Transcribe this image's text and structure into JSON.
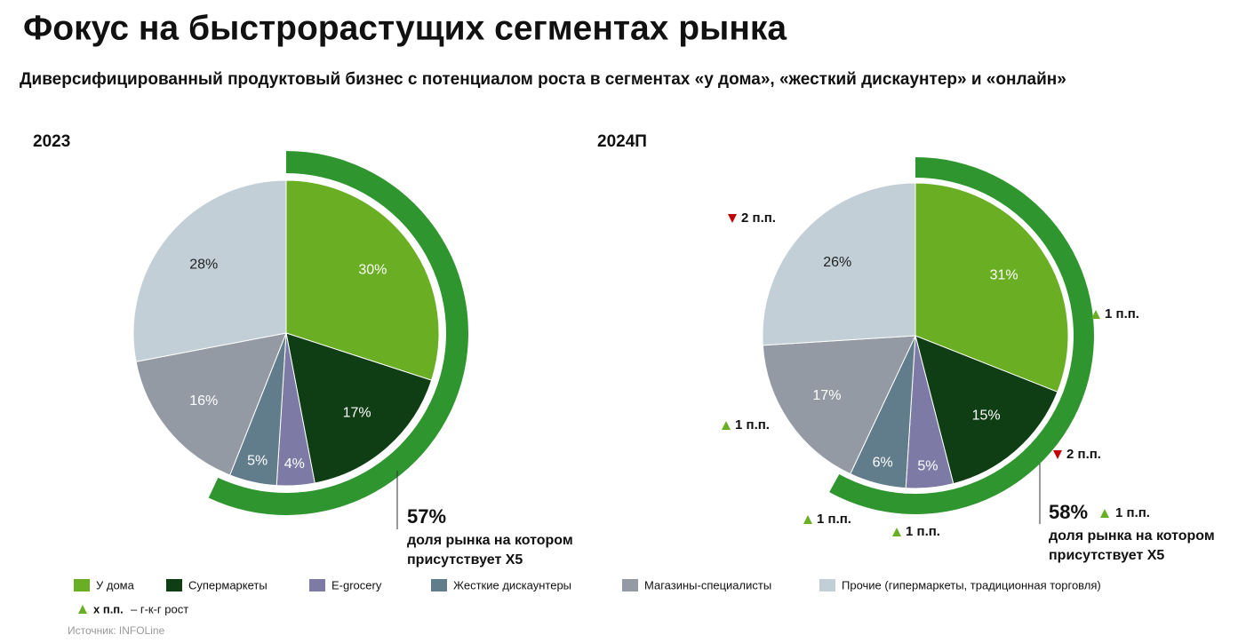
{
  "title": "Фокус на быстрорастущих сегментах рынка",
  "subtitle": "Диверсифицированный продуктовый бизнес с потенциалом роста в сегментах «у дома», «жесткий дискаунтер» и «онлайн»",
  "legend": {
    "categories": [
      "У дома",
      "Супермаркеты",
      "E-grocery",
      "Жесткие дискаунтеры",
      "Магазины-специалисты",
      "Прочие (гипермаркеты, традиционная торговля)"
    ],
    "colors": [
      "#6aaf23",
      "#0f3d14",
      "#7d7ba6",
      "#617c8b",
      "#949aa4",
      "#c3cfd7"
    ]
  },
  "growth_note": {
    "marker": "x п.п.",
    "text": "– г-к-г рост"
  },
  "source": "Источник: INFOLine",
  "chart_data": [
    {
      "type": "pie",
      "title": "2023",
      "values": [
        30,
        17,
        4,
        5,
        16,
        28
      ],
      "value_labels": [
        "30%",
        "17%",
        "4%",
        "5%",
        "16%",
        "28%"
      ],
      "share": {
        "value": 57,
        "label": "57%",
        "text_lines": [
          "доля рынка на котором",
          "присутствует X5"
        ]
      }
    },
    {
      "type": "pie",
      "title": "2024П",
      "values": [
        31,
        15,
        5,
        6,
        17,
        26
      ],
      "value_labels": [
        "31%",
        "15%",
        "5%",
        "6%",
        "17%",
        "26%"
      ],
      "changes": [
        {
          "value": 1,
          "label": "1 п.п."
        },
        {
          "value": -2,
          "label": "2 п.п."
        },
        {
          "value": 1,
          "label": "1 п.п."
        },
        {
          "value": 1,
          "label": "1 п.п."
        },
        {
          "value": 1,
          "label": "1 п.п."
        },
        {
          "value": -2,
          "label": "2 п.п."
        }
      ],
      "share": {
        "value": 58,
        "label": "58%",
        "change": {
          "value": 1,
          "label": "1 п.п."
        },
        "text_lines": [
          "доля рынка на котором",
          "присутствует X5"
        ]
      }
    }
  ]
}
